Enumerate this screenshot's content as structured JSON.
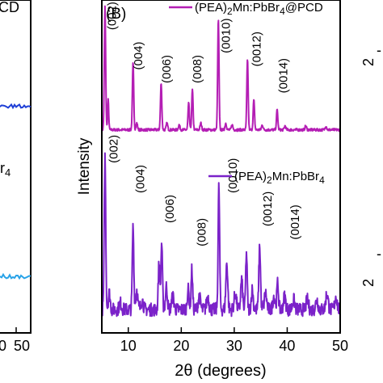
{
  "chart_data": {
    "type": "line",
    "panel_label": "(B)",
    "xlabel": "2θ (degrees)",
    "ylabel": "Intensity",
    "xlim": [
      5,
      50
    ],
    "ylim": [
      0,
      1
    ],
    "xticks": [
      "10",
      "20",
      "30",
      "40",
      "50"
    ],
    "grid": false,
    "legend_placement": "top-right",
    "series": [
      {
        "name": "(PEA)2Mn:PbBr4@PCD",
        "name_parts": {
          "pre": "(PEA)",
          "sub1": "2",
          "mid": "Mn:PbBr",
          "sub2": "4",
          "post": "@PCD"
        },
        "color": "#b41eb4",
        "baseline": 0.61,
        "noise": 0.004,
        "peaks": [
          {
            "x": 5.6,
            "h": 0.37,
            "w": 0.18
          },
          {
            "x": 6.2,
            "h": 0.09,
            "w": 0.15
          },
          {
            "x": 10.9,
            "h": 0.2,
            "w": 0.18
          },
          {
            "x": 11.6,
            "h": 0.02,
            "w": 0.2
          },
          {
            "x": 16.2,
            "h": 0.14,
            "w": 0.18
          },
          {
            "x": 17.3,
            "h": 0.02,
            "w": 0.2
          },
          {
            "x": 19.6,
            "h": 0.015,
            "w": 0.2
          },
          {
            "x": 21.4,
            "h": 0.08,
            "w": 0.18
          },
          {
            "x": 22.1,
            "h": 0.12,
            "w": 0.18
          },
          {
            "x": 23.7,
            "h": 0.02,
            "w": 0.2
          },
          {
            "x": 27.0,
            "h": 0.33,
            "w": 0.18
          },
          {
            "x": 28.4,
            "h": 0.02,
            "w": 0.2
          },
          {
            "x": 29.6,
            "h": 0.015,
            "w": 0.2
          },
          {
            "x": 32.5,
            "h": 0.21,
            "w": 0.18
          },
          {
            "x": 33.7,
            "h": 0.09,
            "w": 0.18
          },
          {
            "x": 35.3,
            "h": 0.015,
            "w": 0.2
          },
          {
            "x": 38.1,
            "h": 0.06,
            "w": 0.18
          },
          {
            "x": 39.6,
            "h": 0.012,
            "w": 0.2
          },
          {
            "x": 43.5,
            "h": 0.012,
            "w": 0.2
          },
          {
            "x": 47.3,
            "h": 0.012,
            "w": 0.2
          }
        ]
      },
      {
        "name": "(PEA)2Mn:PbBr4",
        "name_parts": {
          "pre": "(PEA)",
          "sub1": "2",
          "mid": "Mn:PbBr",
          "sub2": "4",
          "post": ""
        },
        "color": "#7b22c9",
        "baseline": 0.07,
        "noise": 0.02,
        "peaks": [
          {
            "x": 5.6,
            "h": 0.46,
            "w": 0.2
          },
          {
            "x": 6.4,
            "h": 0.05,
            "w": 0.25
          },
          {
            "x": 8.5,
            "h": 0.02,
            "w": 0.3
          },
          {
            "x": 10.9,
            "h": 0.25,
            "w": 0.2
          },
          {
            "x": 11.6,
            "h": 0.06,
            "w": 0.25
          },
          {
            "x": 12.6,
            "h": 0.03,
            "w": 0.3
          },
          {
            "x": 15.8,
            "h": 0.14,
            "w": 0.2
          },
          {
            "x": 16.3,
            "h": 0.2,
            "w": 0.2
          },
          {
            "x": 17.2,
            "h": 0.07,
            "w": 0.25
          },
          {
            "x": 18.4,
            "h": 0.04,
            "w": 0.3
          },
          {
            "x": 21.3,
            "h": 0.06,
            "w": 0.25
          },
          {
            "x": 22.0,
            "h": 0.12,
            "w": 0.2
          },
          {
            "x": 23.4,
            "h": 0.04,
            "w": 0.3
          },
          {
            "x": 25.0,
            "h": 0.04,
            "w": 0.3
          },
          {
            "x": 27.1,
            "h": 0.37,
            "w": 0.2
          },
          {
            "x": 28.6,
            "h": 0.14,
            "w": 0.25
          },
          {
            "x": 30.2,
            "h": 0.05,
            "w": 0.3
          },
          {
            "x": 31.4,
            "h": 0.09,
            "w": 0.25
          },
          {
            "x": 32.3,
            "h": 0.17,
            "w": 0.2
          },
          {
            "x": 33.4,
            "h": 0.06,
            "w": 0.25
          },
          {
            "x": 34.8,
            "h": 0.19,
            "w": 0.22
          },
          {
            "x": 35.9,
            "h": 0.05,
            "w": 0.3
          },
          {
            "x": 37.5,
            "h": 0.04,
            "w": 0.3
          },
          {
            "x": 38.2,
            "h": 0.08,
            "w": 0.22
          },
          {
            "x": 39.5,
            "h": 0.04,
            "w": 0.3
          },
          {
            "x": 41.2,
            "h": 0.03,
            "w": 0.3
          },
          {
            "x": 43.8,
            "h": 0.03,
            "w": 0.3
          },
          {
            "x": 45.6,
            "h": 0.03,
            "w": 0.3
          },
          {
            "x": 47.5,
            "h": 0.05,
            "w": 0.3
          },
          {
            "x": 49.2,
            "h": 0.04,
            "w": 0.3
          }
        ]
      }
    ],
    "annotations": [
      {
        "series": 0,
        "text": "(002)",
        "x": 7.7,
        "y": 0.91
      },
      {
        "series": 0,
        "text": "(004)",
        "x": 12.6,
        "y": 0.79
      },
      {
        "series": 0,
        "text": "(006)",
        "x": 18.0,
        "y": 0.75
      },
      {
        "series": 0,
        "text": "(008)",
        "x": 23.8,
        "y": 0.75
      },
      {
        "series": 0,
        "text": "(0010)",
        "x": 29.2,
        "y": 0.84
      },
      {
        "series": 0,
        "text": "(0012)",
        "x": 35.0,
        "y": 0.8
      },
      {
        "series": 0,
        "text": "(0014)",
        "x": 40.0,
        "y": 0.72
      },
      {
        "series": 1,
        "text": "(002)",
        "x": 8.0,
        "y": 0.51
      },
      {
        "series": 1,
        "text": "(004)",
        "x": 13.0,
        "y": 0.42
      },
      {
        "series": 1,
        "text": "(006)",
        "x": 18.6,
        "y": 0.33
      },
      {
        "series": 1,
        "text": "(008)",
        "x": 24.6,
        "y": 0.26
      },
      {
        "series": 1,
        "text": "(0010)",
        "x": 30.5,
        "y": 0.42
      },
      {
        "series": 1,
        "text": "(0012)",
        "x": 37.0,
        "y": 0.32
      },
      {
        "series": 1,
        "text": "(0014)",
        "x": 42.2,
        "y": 0.28
      }
    ],
    "left_panel": {
      "xticks": [
        "0",
        "50"
      ],
      "legend_fragments": [
        "CD",
        "r",
        "4"
      ],
      "series": [
        {
          "color": "#1f3fd6",
          "y": 0.68
        },
        {
          "color": "#29a3e8",
          "y": 0.17
        }
      ]
    },
    "right_panel": {
      "fragments": [
        "2",
        "-",
        "2",
        "-"
      ]
    }
  }
}
